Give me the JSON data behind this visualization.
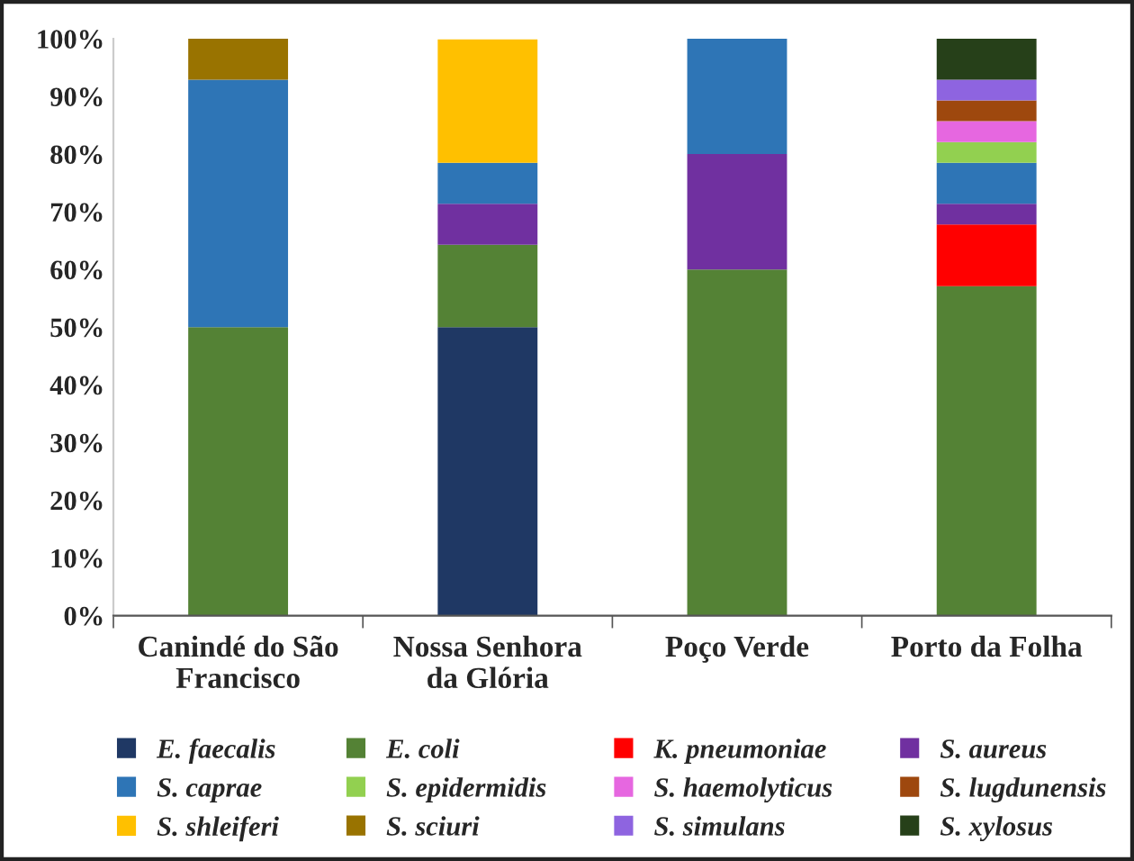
{
  "chart_data": {
    "type": "bar",
    "stacked": true,
    "categories": [
      "Canindé do São\nFrancisco",
      "Nossa Senhora\nda Glória",
      "Poço Verde",
      "Porto da Folha"
    ],
    "ylim": [
      0,
      100
    ],
    "yticks": [
      {
        "value": 0,
        "label": "0%"
      },
      {
        "value": 10,
        "label": "10%"
      },
      {
        "value": 20,
        "label": "20%"
      },
      {
        "value": 30,
        "label": "30%"
      },
      {
        "value": 40,
        "label": "40%"
      },
      {
        "value": 50,
        "label": "50%"
      },
      {
        "value": 60,
        "label": "60%"
      },
      {
        "value": 70,
        "label": "70%"
      },
      {
        "value": 80,
        "label": "80%"
      },
      {
        "value": 90,
        "label": "90%"
      },
      {
        "value": 100,
        "label": "100%"
      }
    ],
    "grid": false,
    "legend": "bottom",
    "series": [
      {
        "name": "E. faecalis",
        "color": "#1f3864",
        "values": [
          0,
          50,
          0,
          0
        ]
      },
      {
        "name": "E. coli",
        "color": "#548235",
        "values": [
          50,
          14.3,
          60,
          57.1
        ]
      },
      {
        "name": "K. pneumoniae",
        "color": "#ff0000",
        "values": [
          0,
          0,
          0,
          10.7
        ]
      },
      {
        "name": "S. aureus",
        "color": "#7030a0",
        "values": [
          0,
          7.1,
          20,
          3.6
        ]
      },
      {
        "name": "S. caprae",
        "color": "#2e75b6",
        "values": [
          42.9,
          7.1,
          20,
          7.1
        ]
      },
      {
        "name": "S. epidermidis",
        "color": "#92d050",
        "values": [
          0,
          0,
          0,
          3.6
        ]
      },
      {
        "name": "S. haemolyticus",
        "color": "#e667e0",
        "values": [
          0,
          0,
          0,
          3.6
        ]
      },
      {
        "name": "S. lugdunensis",
        "color": "#9e480e",
        "values": [
          0,
          0,
          0,
          3.6
        ]
      },
      {
        "name": "S. shleiferi",
        "color": "#ffc000",
        "values": [
          0,
          21.4,
          0,
          0
        ]
      },
      {
        "name": "S. sciuri",
        "color": "#997300",
        "values": [
          7.1,
          0,
          0,
          0
        ]
      },
      {
        "name": "S. simulans",
        "color": "#8e64e0",
        "values": [
          0,
          0,
          0,
          3.6
        ]
      },
      {
        "name": "S. xylosus",
        "color": "#264019",
        "values": [
          0,
          0,
          0,
          7.1
        ]
      }
    ]
  }
}
